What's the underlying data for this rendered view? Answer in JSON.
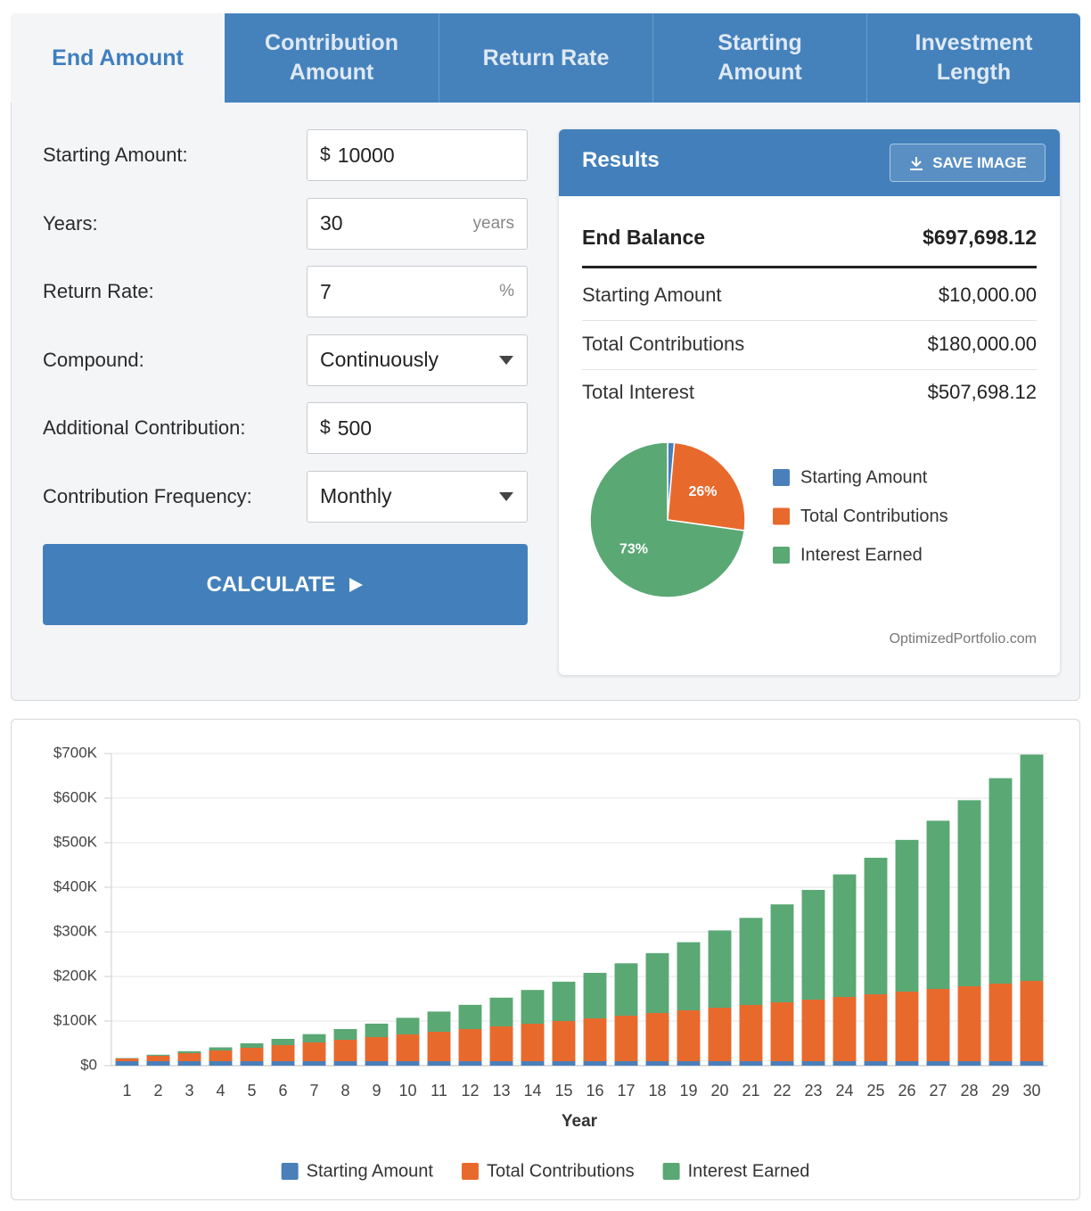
{
  "tabs": [
    "End Amount",
    "Contribution Amount",
    "Return Rate",
    "Starting Amount",
    "Investment Length"
  ],
  "form": {
    "fields": [
      {
        "label": "Starting Amount:",
        "prefix": "$",
        "value": "10000",
        "kind": "text"
      },
      {
        "label": "Years:",
        "value": "30",
        "suffix": "years",
        "kind": "text"
      },
      {
        "label": "Return Rate:",
        "value": "7",
        "suffix": "%",
        "kind": "text"
      },
      {
        "label": "Compound:",
        "value": "Continuously",
        "kind": "select"
      },
      {
        "label": "Additional Contribution:",
        "prefix": "$",
        "value": "500",
        "kind": "text"
      },
      {
        "label": "Contribution Frequency:",
        "value": "Monthly",
        "kind": "select"
      }
    ],
    "button": "CALCULATE"
  },
  "results": {
    "title": "Results",
    "save_button": "SAVE IMAGE",
    "summary": {
      "label": "End Balance",
      "value": "$697,698.12"
    },
    "rows": [
      {
        "label": "Starting Amount",
        "value": "$10,000.00"
      },
      {
        "label": "Total Contributions",
        "value": "$180,000.00"
      },
      {
        "label": "Total Interest",
        "value": "$507,698.12"
      }
    ],
    "credit": "OptimizedPortfolio.com"
  },
  "chart_data": [
    {
      "type": "pie",
      "categories": [
        "Starting Amount",
        "Total Contributions",
        "Interest Earned"
      ],
      "values": [
        1.4,
        25.8,
        72.8
      ],
      "value_labels": [
        null,
        "26%",
        "73%"
      ],
      "colors": [
        "#4a7fba",
        "#e8692c",
        "#5aa874"
      ]
    },
    {
      "type": "stacked_bar",
      "x_label": "Year",
      "categories": [
        "1",
        "2",
        "3",
        "4",
        "5",
        "6",
        "7",
        "8",
        "9",
        "10",
        "11",
        "12",
        "13",
        "14",
        "15",
        "16",
        "17",
        "18",
        "19",
        "20",
        "21",
        "22",
        "23",
        "24",
        "25",
        "26",
        "27",
        "28",
        "29",
        "30"
      ],
      "series": [
        {
          "name": "Starting Amount",
          "color": "#4a7fba",
          "values": [
            10000,
            10000,
            10000,
            10000,
            10000,
            10000,
            10000,
            10000,
            10000,
            10000,
            10000,
            10000,
            10000,
            10000,
            10000,
            10000,
            10000,
            10000,
            10000,
            10000,
            10000,
            10000,
            10000,
            10000,
            10000,
            10000,
            10000,
            10000,
            10000,
            10000
          ]
        },
        {
          "name": "Total Contributions",
          "color": "#e8692c",
          "values": [
            6000,
            12000,
            18000,
            24000,
            30000,
            36000,
            42000,
            48000,
            54000,
            60000,
            66000,
            72000,
            78000,
            84000,
            90000,
            96000,
            102000,
            108000,
            114000,
            120000,
            126000,
            132000,
            138000,
            144000,
            150000,
            156000,
            162000,
            168000,
            174000,
            180000
          ]
        },
        {
          "name": "Interest Earned",
          "color": "#5aa874",
          "values": [
            959,
            2421,
            4425,
            7009,
            10215,
            14090,
            18680,
            24038,
            30219,
            37284,
            45296,
            54324,
            64441,
            75728,
            88268,
            102151,
            117477,
            134349,
            152880,
            173185,
            195406,
            219668,
            246126,
            274936,
            306271,
            340312,
            377258,
            417315,
            460714,
            507698
          ]
        }
      ],
      "ylim": [
        0,
        700000
      ],
      "yticks": [
        {
          "value": 0,
          "label": "$0"
        },
        {
          "value": 100000,
          "label": "$100K"
        },
        {
          "value": 200000,
          "label": "$200K"
        },
        {
          "value": 300000,
          "label": "$300K"
        },
        {
          "value": 400000,
          "label": "$400K"
        },
        {
          "value": 500000,
          "label": "$500K"
        },
        {
          "value": 600000,
          "label": "$600K"
        },
        {
          "value": 700000,
          "label": "$700K"
        }
      ],
      "grid": true
    }
  ]
}
